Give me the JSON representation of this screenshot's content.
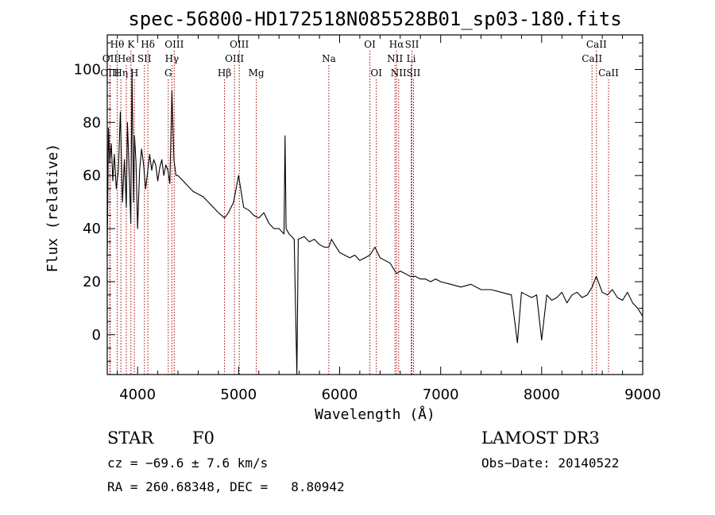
{
  "chart_data": {
    "type": "line",
    "title": "spec-56800-HD172518N085528B01_sp03-180.fits",
    "xlabel": "Wavelength (Å)",
    "ylabel": "Flux (relative)",
    "xlim": [
      3700,
      9000
    ],
    "ylim": [
      -15,
      113
    ],
    "xticks": [
      4000,
      5000,
      6000,
      7000,
      8000,
      9000
    ],
    "yticks": [
      0,
      20,
      40,
      60,
      80,
      100
    ],
    "line_color": "#000000",
    "marker_color": "#aa0000",
    "spectrum": {
      "x": [
        3700,
        3712,
        3725,
        3740,
        3755,
        3770,
        3790,
        3810,
        3830,
        3850,
        3870,
        3889,
        3900,
        3920,
        3933,
        3945,
        3960,
        3970,
        3985,
        4000,
        4020,
        4040,
        4060,
        4080,
        4102,
        4120,
        4140,
        4160,
        4180,
        4200,
        4220,
        4240,
        4260,
        4280,
        4300,
        4320,
        4340,
        4360,
        4380,
        4400,
        4450,
        4500,
        4550,
        4600,
        4650,
        4700,
        4750,
        4800,
        4861,
        4900,
        4950,
        5000,
        5050,
        5100,
        5150,
        5200,
        5250,
        5300,
        5350,
        5400,
        5450,
        5460,
        5470,
        5500,
        5550,
        5577,
        5590,
        5650,
        5700,
        5750,
        5800,
        5850,
        5893,
        5920,
        5950,
        6000,
        6050,
        6100,
        6150,
        6200,
        6250,
        6300,
        6350,
        6400,
        6450,
        6500,
        6563,
        6600,
        6650,
        6700,
        6750,
        6800,
        6850,
        6900,
        6950,
        7000,
        7100,
        7200,
        7300,
        7400,
        7500,
        7600,
        7700,
        7760,
        7800,
        7850,
        7900,
        7950,
        8000,
        8050,
        8100,
        8150,
        8200,
        8250,
        8300,
        8350,
        8400,
        8450,
        8500,
        8540,
        8600,
        8650,
        8700,
        8750,
        8800,
        8850,
        8900,
        8950,
        9000
      ],
      "y": [
        30,
        78,
        65,
        72,
        58,
        68,
        55,
        62,
        84,
        50,
        66,
        48,
        80,
        58,
        42,
        100,
        50,
        75,
        65,
        40,
        62,
        70,
        64,
        55,
        62,
        68,
        62,
        66,
        64,
        58,
        63,
        66,
        60,
        64,
        62,
        57,
        92,
        66,
        60,
        60,
        58,
        56,
        54,
        53,
        52,
        50,
        48,
        46,
        44,
        46,
        50,
        60,
        48,
        47,
        45,
        44,
        46,
        42,
        40,
        40,
        38,
        75,
        40,
        38,
        36,
        -15,
        36,
        37,
        35,
        36,
        34,
        33,
        33,
        36,
        34,
        31,
        30,
        29,
        30,
        28,
        29,
        30,
        33,
        29,
        28,
        27,
        23,
        24,
        23,
        22,
        22,
        21,
        21,
        20,
        21,
        20,
        19,
        18,
        19,
        17,
        17,
        16,
        15,
        -3,
        16,
        15,
        14,
        15,
        -2,
        15,
        13,
        14,
        16,
        12,
        15,
        16,
        14,
        15,
        18,
        22,
        16,
        15,
        17,
        14,
        13,
        16,
        12,
        10,
        7
      ]
    },
    "lines": [
      {
        "name": "Hθ",
        "x": 3798,
        "row": 0
      },
      {
        "name": "OII",
        "x": 3727,
        "row": 1
      },
      {
        "name": "OIII",
        "x": 3727,
        "row": 2
      },
      {
        "name": "Hη",
        "x": 3835,
        "row": 2
      },
      {
        "name": "HeI",
        "x": 3889,
        "row": 1
      },
      {
        "name": "K",
        "x": 3934,
        "row": 0
      },
      {
        "name": "H",
        "x": 3968,
        "row": 2
      },
      {
        "name": "SII",
        "x": 4068,
        "row": 1
      },
      {
        "name": "Hδ",
        "x": 4102,
        "row": 0
      },
      {
        "name": "OIII",
        "x": 4363,
        "row": 0
      },
      {
        "name": "Hγ",
        "x": 4340,
        "row": 1
      },
      {
        "name": "G",
        "x": 4304,
        "row": 2
      },
      {
        "name": "Hβ",
        "x": 4861,
        "row": 2
      },
      {
        "name": "OIII",
        "x": 5007,
        "row": 0
      },
      {
        "name": "OIII",
        "x": 4959,
        "row": 1
      },
      {
        "name": "Mg",
        "x": 5175,
        "row": 2
      },
      {
        "name": "Na",
        "x": 5893,
        "row": 1
      },
      {
        "name": "OI",
        "x": 6300,
        "row": 0
      },
      {
        "name": "OI",
        "x": 6363,
        "row": 2
      },
      {
        "name": "Hα",
        "x": 6563,
        "row": 0
      },
      {
        "name": "NII",
        "x": 6548,
        "row": 1
      },
      {
        "name": "NII",
        "x": 6584,
        "row": 2
      },
      {
        "name": "SII",
        "x": 6716,
        "row": 0
      },
      {
        "name": "Li",
        "x": 6708,
        "row": 1
      },
      {
        "name": "SII",
        "x": 6731,
        "row": 2
      },
      {
        "name": "CaII",
        "x": 8542,
        "row": 0
      },
      {
        "name": "CaII",
        "x": 8498,
        "row": 1
      },
      {
        "name": "CaII",
        "x": 8662,
        "row": 2
      }
    ]
  },
  "info": {
    "object_class": "STAR",
    "subclass": "F0",
    "survey": "LAMOST DR3",
    "cz_line": "cz = −69.6 ± 7.6 km/s",
    "obs_date_line": "Obs−Date: 20140522",
    "radec_line": "RA = 260.68348, DEC =   8.80942"
  }
}
